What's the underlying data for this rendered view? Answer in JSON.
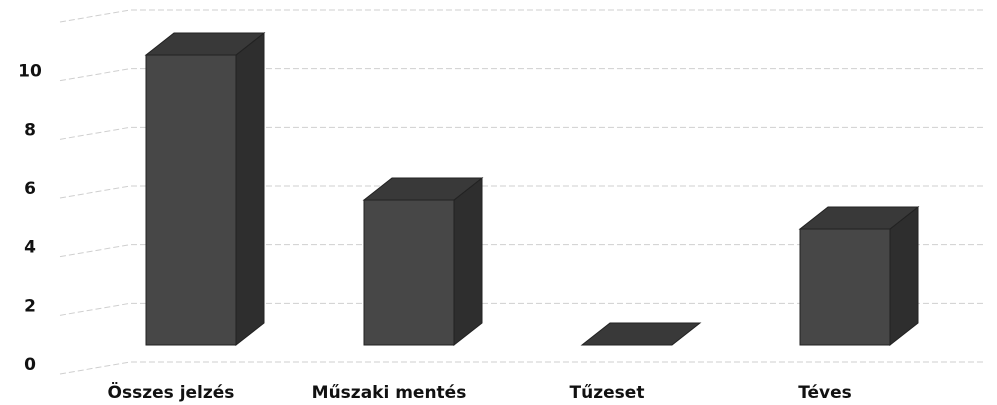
{
  "chart_data": {
    "type": "bar3d",
    "categories": [
      "Összes jelzés",
      "Műszaki mentés",
      "Tűzeset",
      "Téves"
    ],
    "values": [
      10,
      5,
      0,
      4
    ],
    "color": "#474747",
    "ylim": [
      0,
      12
    ],
    "yticks": [
      0,
      2,
      4,
      6,
      8,
      10
    ],
    "grid": true
  }
}
